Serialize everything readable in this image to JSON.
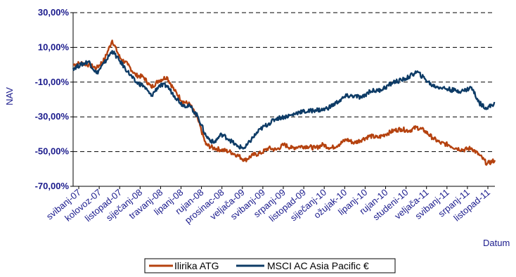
{
  "chart_data": {
    "type": "line",
    "title": "",
    "xlabel": "Datum",
    "ylabel": "NAV",
    "ylim": [
      -70,
      30
    ],
    "y_ticks": [
      {
        "value": 30,
        "label": "30,00%"
      },
      {
        "value": 10,
        "label": "10,00%"
      },
      {
        "value": -10,
        "label": "-10,00%"
      },
      {
        "value": -30,
        "label": "-30,00%"
      },
      {
        "value": -50,
        "label": "-50,00%"
      },
      {
        "value": -70,
        "label": "-70,00%"
      }
    ],
    "x_tick_labels": [
      "svibanj-07",
      "kolovoz-07",
      "listopad-07",
      "siječanj-08",
      "travanj-08",
      "lipanj-08",
      "rujan-08",
      "prosinac-08",
      "veljača-09",
      "svibanj-09",
      "srpanj-09",
      "listopad-09",
      "siječanj-10",
      "ožujak-10",
      "lipanj-10",
      "rujan-10",
      "studeni-10",
      "veljača-11",
      "svibanj-11",
      "srpanj-11",
      "listopad-11"
    ],
    "grid": "horizontal-dashed",
    "legend_position": "bottom",
    "series": [
      {
        "name": "Ilirika ATG",
        "color": "#b5420f",
        "points": [
          [
            "2007-05",
            0
          ],
          [
            "2007-06",
            1
          ],
          [
            "2007-07",
            0
          ],
          [
            "2007-08",
            -2
          ],
          [
            "2007-09",
            3
          ],
          [
            "2007-10",
            14
          ],
          [
            "2007-11",
            4
          ],
          [
            "2007-12",
            0
          ],
          [
            "2008-01",
            -6
          ],
          [
            "2008-02",
            -7
          ],
          [
            "2008-03",
            -13
          ],
          [
            "2008-04",
            -9
          ],
          [
            "2008-05",
            -7
          ],
          [
            "2008-06",
            -15
          ],
          [
            "2008-07",
            -21
          ],
          [
            "2008-08",
            -23
          ],
          [
            "2008-09",
            -32
          ],
          [
            "2008-10",
            -46
          ],
          [
            "2008-11",
            -48
          ],
          [
            "2008-12",
            -49
          ],
          [
            "2009-01",
            -50
          ],
          [
            "2009-02",
            -52
          ],
          [
            "2009-03",
            -55
          ],
          [
            "2009-04",
            -52
          ],
          [
            "2009-05",
            -51
          ],
          [
            "2009-06",
            -48
          ],
          [
            "2009-07",
            -49
          ],
          [
            "2009-08",
            -46
          ],
          [
            "2009-09",
            -48
          ],
          [
            "2009-10",
            -47
          ],
          [
            "2009-11",
            -47
          ],
          [
            "2009-12",
            -48
          ],
          [
            "2010-01",
            -46
          ],
          [
            "2010-02",
            -48
          ],
          [
            "2010-03",
            -46
          ],
          [
            "2010-04",
            -43
          ],
          [
            "2010-05",
            -45
          ],
          [
            "2010-06",
            -43
          ],
          [
            "2010-07",
            -41
          ],
          [
            "2010-08",
            -42
          ],
          [
            "2010-09",
            -40
          ],
          [
            "2010-10",
            -38
          ],
          [
            "2010-11",
            -37
          ],
          [
            "2010-12",
            -38
          ],
          [
            "2011-01",
            -36
          ],
          [
            "2011-02",
            -38
          ],
          [
            "2011-03",
            -42
          ],
          [
            "2011-04",
            -45
          ],
          [
            "2011-05",
            -46
          ],
          [
            "2011-06",
            -48
          ],
          [
            "2011-07",
            -49
          ],
          [
            "2011-08",
            -48
          ],
          [
            "2011-09",
            -52
          ],
          [
            "2011-10",
            -57
          ],
          [
            "2011-11",
            -55
          ]
        ]
      },
      {
        "name": "MSCI AC Asia Pacific €",
        "color": "#0d3b66",
        "points": [
          [
            "2007-05",
            -2
          ],
          [
            "2007-06",
            0
          ],
          [
            "2007-07",
            2
          ],
          [
            "2007-08",
            -5
          ],
          [
            "2007-09",
            1
          ],
          [
            "2007-10",
            8
          ],
          [
            "2007-11",
            2
          ],
          [
            "2007-12",
            -4
          ],
          [
            "2008-01",
            -10
          ],
          [
            "2008-02",
            -12
          ],
          [
            "2008-03",
            -18
          ],
          [
            "2008-04",
            -12
          ],
          [
            "2008-05",
            -12
          ],
          [
            "2008-06",
            -18
          ],
          [
            "2008-07",
            -23
          ],
          [
            "2008-08",
            -24
          ],
          [
            "2008-09",
            -30
          ],
          [
            "2008-10",
            -41
          ],
          [
            "2008-11",
            -45
          ],
          [
            "2008-12",
            -40
          ],
          [
            "2009-01",
            -43
          ],
          [
            "2009-02",
            -47
          ],
          [
            "2009-03",
            -48
          ],
          [
            "2009-04",
            -42
          ],
          [
            "2009-05",
            -37
          ],
          [
            "2009-06",
            -34
          ],
          [
            "2009-07",
            -31
          ],
          [
            "2009-08",
            -30
          ],
          [
            "2009-09",
            -29
          ],
          [
            "2009-10",
            -27
          ],
          [
            "2009-11",
            -27
          ],
          [
            "2009-12",
            -26
          ],
          [
            "2010-01",
            -26
          ],
          [
            "2010-02",
            -24
          ],
          [
            "2010-03",
            -21
          ],
          [
            "2010-04",
            -18
          ],
          [
            "2010-05",
            -18
          ],
          [
            "2010-06",
            -19
          ],
          [
            "2010-07",
            -15
          ],
          [
            "2010-08",
            -15
          ],
          [
            "2010-09",
            -13
          ],
          [
            "2010-10",
            -10
          ],
          [
            "2010-11",
            -9
          ],
          [
            "2010-12",
            -7
          ],
          [
            "2011-01",
            -4
          ],
          [
            "2011-02",
            -8
          ],
          [
            "2011-03",
            -12
          ],
          [
            "2011-04",
            -13
          ],
          [
            "2011-05",
            -14
          ],
          [
            "2011-06",
            -15
          ],
          [
            "2011-07",
            -15
          ],
          [
            "2011-08",
            -13
          ],
          [
            "2011-09",
            -22
          ],
          [
            "2011-10",
            -25
          ],
          [
            "2011-11",
            -22
          ]
        ]
      }
    ]
  }
}
